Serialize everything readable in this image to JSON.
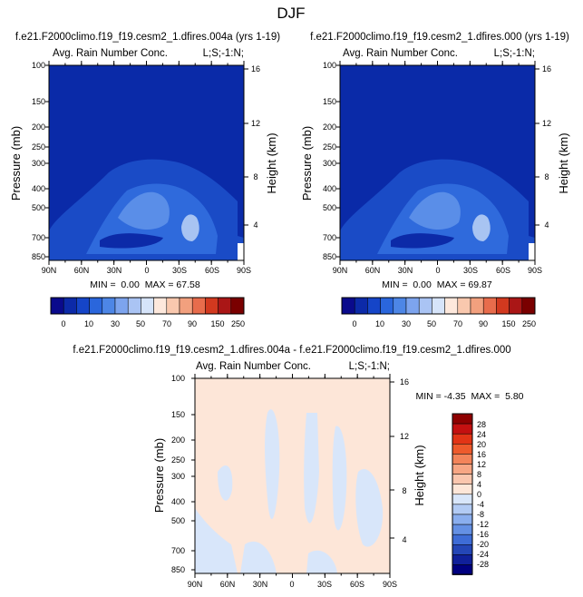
{
  "page_title": "DJF",
  "chart_data": [
    {
      "type": "contour",
      "id": "panel-1",
      "title": "f.e21.F2000climo.f19_f19.cesm2_1.dfires.004a (yrs 1-19)",
      "subtitle_left": "Avg. Rain Number Conc.",
      "subtitle_right": "L;S;-1:N;",
      "xlabel": "",
      "ylabel": "Pressure (mb)",
      "ylabel_right": "Height (km)",
      "x_ticks": [
        "90N",
        "60N",
        "30N",
        "0",
        "30S",
        "60S",
        "90S"
      ],
      "y_ticks": [
        "100",
        "150",
        "200",
        "250",
        "300",
        "400",
        "500",
        "700",
        "850"
      ],
      "y_ticks_right": [
        "16",
        "12",
        "8",
        "4"
      ],
      "stats": "MIN =  0.00  MAX = 67.58",
      "colorbar_labels": [
        "0",
        "10",
        "30",
        "50",
        "70",
        "90",
        "150",
        "250"
      ]
    },
    {
      "type": "contour",
      "id": "panel-2",
      "title": "f.e21.F2000climo.f19_f19.cesm2_1.dfires.000 (yrs 1-19)",
      "subtitle_left": "Avg. Rain Number Conc.",
      "subtitle_right": "L;S;-1:N;",
      "xlabel": "",
      "ylabel": "Pressure (mb)",
      "ylabel_right": "Height (km)",
      "x_ticks": [
        "90N",
        "60N",
        "30N",
        "0",
        "30S",
        "60S",
        "90S"
      ],
      "y_ticks": [
        "100",
        "150",
        "200",
        "250",
        "300",
        "400",
        "500",
        "700",
        "850"
      ],
      "y_ticks_right": [
        "16",
        "12",
        "8",
        "4"
      ],
      "stats": "MIN =  0.00  MAX = 69.87",
      "colorbar_labels": [
        "0",
        "10",
        "30",
        "50",
        "70",
        "90",
        "150",
        "250"
      ]
    },
    {
      "type": "contour",
      "id": "panel-diff",
      "title": "f.e21.F2000climo.f19_f19.cesm2_1.dfires.004a - f.e21.F2000climo.f19_f19.cesm2_1.dfires.000",
      "subtitle_left": "Avg. Rain Number Conc.",
      "subtitle_right": "L;S;-1:N;",
      "xlabel": "",
      "ylabel": "Pressure (mb)",
      "ylabel_right": "Height (km)",
      "x_ticks": [
        "90N",
        "60N",
        "30N",
        "0",
        "30S",
        "60S",
        "90S"
      ],
      "y_ticks": [
        "100",
        "150",
        "200",
        "250",
        "300",
        "400",
        "500",
        "700",
        "850"
      ],
      "y_ticks_right": [
        "16",
        "12",
        "8",
        "4"
      ],
      "stats": "MIN = -4.35  MAX =  5.80",
      "colorbar_labels": [
        "28",
        "24",
        "20",
        "16",
        "12",
        "8",
        "4",
        "0",
        "-4",
        "-8",
        "-12",
        "-16",
        "-20",
        "-24",
        "-28"
      ]
    }
  ],
  "colors": {
    "abs_palette": [
      "#0a0a8c",
      "#0c2aa8",
      "#1545c8",
      "#2a66dc",
      "#4d86e6",
      "#7da4ee",
      "#aac4f4",
      "#d6e4fa",
      "#fde8dc",
      "#f9c8ae",
      "#f2a07e",
      "#e86c4c",
      "#d2391f",
      "#aa1616",
      "#7a0000"
    ],
    "diff_palette": [
      "#8e0000",
      "#c41010",
      "#e23416",
      "#ee5a2c",
      "#f3845a",
      "#f7a684",
      "#fac6ae",
      "#fde6d8",
      "#d8e6fa",
      "#b2cbf4",
      "#8aaeee",
      "#6490e4",
      "#3e6cd6",
      "#2446b6",
      "#10209a",
      "#000080"
    ],
    "bg_blue": "#153fbe",
    "diff_bg": "#fde6d8",
    "diff_neg": "#d8e6fa"
  }
}
